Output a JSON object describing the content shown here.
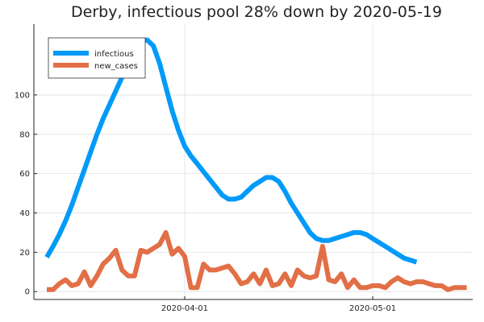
{
  "chart_data": {
    "type": "line",
    "title": "Derby, infectious pool 28% down by 2020-05-19",
    "xlabel": "",
    "ylabel": "",
    "x_start": "2020-03-10",
    "x_ticks": [
      {
        "date": "2020-04-01",
        "label": "2020-04-01"
      },
      {
        "date": "2020-05-01",
        "label": "2020-05-01"
      }
    ],
    "ylim": [
      -4,
      136
    ],
    "y_ticks": [
      0,
      20,
      40,
      60,
      80,
      100
    ],
    "grid": true,
    "legend": "top-left",
    "series": [
      {
        "name": "infectious",
        "color": "#009af9",
        "values": [
          17.5,
          23,
          29,
          36,
          44,
          53,
          62,
          71,
          80,
          88,
          95,
          102,
          109,
          115,
          120,
          127,
          128,
          125,
          116,
          104,
          92,
          82,
          74,
          69,
          65,
          61,
          57,
          53,
          49,
          47,
          47,
          48,
          51,
          54,
          56,
          58,
          58,
          56,
          51,
          45,
          40,
          35,
          30,
          27,
          26,
          26,
          27,
          28,
          29,
          30,
          30,
          29,
          27,
          25,
          23,
          21,
          19,
          17,
          16,
          15
        ]
      },
      {
        "name": "new_cases",
        "color": "#e26f46",
        "values": [
          1,
          1,
          4,
          6,
          3,
          4,
          10,
          3,
          8,
          14,
          17,
          21,
          11,
          8,
          8,
          21,
          20,
          22,
          24,
          30,
          19,
          22,
          18,
          2,
          2,
          14,
          11,
          11,
          12,
          13,
          9,
          4,
          5,
          9,
          4,
          11,
          3,
          4,
          9,
          3,
          11,
          8,
          7,
          8,
          23,
          6,
          5,
          9,
          2,
          6,
          2,
          2,
          3,
          3,
          2,
          5,
          7,
          5,
          4,
          5,
          5,
          4,
          3,
          3,
          1,
          2,
          2,
          2
        ]
      }
    ]
  }
}
